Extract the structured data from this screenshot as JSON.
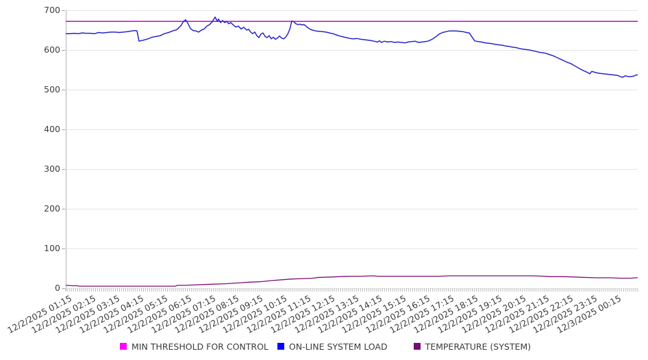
{
  "chart_data": {
    "type": "line",
    "title": "",
    "xlabel": "",
    "ylabel": "",
    "ylim": [
      0,
      700
    ],
    "y_ticks": [
      0,
      100,
      200,
      300,
      400,
      500,
      600,
      700
    ],
    "grid": "horizontal",
    "legend_position": "bottom",
    "x_minor_tick_count": 288,
    "x_tick_labels": [
      "12/2/2025 01:15",
      "12/2/2025 02:15",
      "12/2/2025 03:15",
      "12/2/2025 04:15",
      "12/2/2025 05:15",
      "12/2/2025 06:15",
      "12/2/2025 07:15",
      "12/2/2025 08:15",
      "12/2/2025 09:15",
      "12/2/2025 10:15",
      "12/2/2025 11:15",
      "12/2/2025 12:15",
      "12/2/2025 13:15",
      "12/2/2025 14:15",
      "12/2/2025 15:15",
      "12/2/2025 16:15",
      "12/2/2025 17:15",
      "12/2/2025 18:15",
      "12/2/2025 19:15",
      "12/2/2025 20:15",
      "12/2/2025 21:15",
      "12/2/2025 22:15",
      "12/2/2025 23:15",
      "12/3/2025 00:15"
    ],
    "series": [
      {
        "name": "MIN THRESHOLD FOR CONTROL",
        "swatch_color": "#ff00ff",
        "line_color": "#cc00cc",
        "style": "constant",
        "value": 672
      },
      {
        "name": "ON-LINE SYSTEM LOAD",
        "swatch_color": "#0000ff",
        "line_color": "#2424cc",
        "style": "line",
        "points": [
          [
            0,
            641
          ],
          [
            6,
            641
          ],
          [
            12,
            642
          ],
          [
            18,
            641
          ],
          [
            24,
            643
          ],
          [
            30,
            642
          ],
          [
            36,
            642
          ],
          [
            42,
            641
          ],
          [
            48,
            644
          ],
          [
            54,
            643
          ],
          [
            60,
            644
          ],
          [
            66,
            645
          ],
          [
            72,
            645
          ],
          [
            78,
            644
          ],
          [
            84,
            645
          ],
          [
            90,
            646
          ],
          [
            96,
            648
          ],
          [
            102,
            649
          ],
          [
            104,
            648
          ],
          [
            107,
            622
          ],
          [
            114,
            625
          ],
          [
            120,
            628
          ],
          [
            126,
            632
          ],
          [
            132,
            634
          ],
          [
            138,
            636
          ],
          [
            144,
            641
          ],
          [
            150,
            644
          ],
          [
            156,
            648
          ],
          [
            162,
            651
          ],
          [
            168,
            661
          ],
          [
            172,
            672
          ],
          [
            175,
            676
          ],
          [
            178,
            668
          ],
          [
            182,
            654
          ],
          [
            186,
            649
          ],
          [
            190,
            648
          ],
          [
            194,
            645
          ],
          [
            198,
            650
          ],
          [
            202,
            653
          ],
          [
            206,
            660
          ],
          [
            210,
            664
          ],
          [
            214,
            671
          ],
          [
            218,
            683
          ],
          [
            221,
            673
          ],
          [
            223,
            678
          ],
          [
            226,
            669
          ],
          [
            229,
            674
          ],
          [
            232,
            669
          ],
          [
            235,
            672
          ],
          [
            238,
            666
          ],
          [
            241,
            669
          ],
          [
            244,
            664
          ],
          [
            248,
            658
          ],
          [
            252,
            660
          ],
          [
            256,
            653
          ],
          [
            260,
            657
          ],
          [
            264,
            650
          ],
          [
            267,
            652
          ],
          [
            270,
            645
          ],
          [
            273,
            641
          ],
          [
            276,
            645
          ],
          [
            279,
            636
          ],
          [
            282,
            631
          ],
          [
            285,
            640
          ],
          [
            288,
            643
          ],
          [
            291,
            634
          ],
          [
            294,
            631
          ],
          [
            297,
            636
          ],
          [
            300,
            628
          ],
          [
            303,
            632
          ],
          [
            306,
            627
          ],
          [
            309,
            630
          ],
          [
            312,
            635
          ],
          [
            315,
            630
          ],
          [
            318,
            628
          ],
          [
            321,
            632
          ],
          [
            324,
            640
          ],
          [
            327,
            652
          ],
          [
            330,
            673
          ],
          [
            333,
            671
          ],
          [
            336,
            666
          ],
          [
            339,
            664
          ],
          [
            342,
            665
          ],
          [
            345,
            663
          ],
          [
            348,
            664
          ],
          [
            352,
            658
          ],
          [
            356,
            653
          ],
          [
            360,
            650
          ],
          [
            365,
            648
          ],
          [
            370,
            647
          ],
          [
            375,
            646
          ],
          [
            380,
            645
          ],
          [
            385,
            643
          ],
          [
            390,
            641
          ],
          [
            395,
            638
          ],
          [
            400,
            635
          ],
          [
            405,
            633
          ],
          [
            410,
            631
          ],
          [
            415,
            629
          ],
          [
            420,
            628
          ],
          [
            425,
            629
          ],
          [
            430,
            627
          ],
          [
            435,
            626
          ],
          [
            440,
            625
          ],
          [
            445,
            624
          ],
          [
            450,
            622
          ],
          [
            455,
            620
          ],
          [
            458,
            623
          ],
          [
            461,
            619
          ],
          [
            465,
            622
          ],
          [
            470,
            620
          ],
          [
            475,
            621
          ],
          [
            480,
            619
          ],
          [
            485,
            620
          ],
          [
            490,
            619
          ],
          [
            495,
            618
          ],
          [
            500,
            620
          ],
          [
            505,
            621
          ],
          [
            510,
            622
          ],
          [
            515,
            619
          ],
          [
            520,
            620
          ],
          [
            525,
            621
          ],
          [
            530,
            623
          ],
          [
            535,
            627
          ],
          [
            540,
            633
          ],
          [
            545,
            640
          ],
          [
            550,
            644
          ],
          [
            555,
            646
          ],
          [
            560,
            648
          ],
          [
            565,
            648
          ],
          [
            570,
            648
          ],
          [
            575,
            647
          ],
          [
            580,
            646
          ],
          [
            585,
            644
          ],
          [
            589,
            643
          ],
          [
            593,
            633
          ],
          [
            597,
            623
          ],
          [
            602,
            621
          ],
          [
            607,
            620
          ],
          [
            612,
            618
          ],
          [
            617,
            617
          ],
          [
            622,
            616
          ],
          [
            627,
            614
          ],
          [
            632,
            613
          ],
          [
            637,
            612
          ],
          [
            642,
            610
          ],
          [
            647,
            609
          ],
          [
            652,
            607
          ],
          [
            657,
            606
          ],
          [
            662,
            604
          ],
          [
            667,
            602
          ],
          [
            672,
            601
          ],
          [
            677,
            600
          ],
          [
            682,
            598
          ],
          [
            687,
            596
          ],
          [
            692,
            594
          ],
          [
            697,
            593
          ],
          [
            702,
            591
          ],
          [
            707,
            588
          ],
          [
            712,
            585
          ],
          [
            717,
            581
          ],
          [
            722,
            577
          ],
          [
            727,
            573
          ],
          [
            732,
            569
          ],
          [
            737,
            566
          ],
          [
            742,
            561
          ],
          [
            747,
            556
          ],
          [
            752,
            551
          ],
          [
            757,
            547
          ],
          [
            762,
            543
          ],
          [
            765,
            540
          ],
          [
            768,
            546
          ],
          [
            772,
            544
          ],
          [
            776,
            542
          ],
          [
            780,
            541
          ],
          [
            785,
            540
          ],
          [
            790,
            539
          ],
          [
            795,
            538
          ],
          [
            800,
            537
          ],
          [
            805,
            536
          ],
          [
            810,
            533
          ],
          [
            813,
            531
          ],
          [
            817,
            535
          ],
          [
            821,
            533
          ],
          [
            825,
            533
          ],
          [
            829,
            534
          ],
          [
            833,
            537
          ],
          [
            835,
            537
          ]
        ]
      },
      {
        "name": "TEMPERATURE (SYSTEM)",
        "swatch_color": "#760b76",
        "line_color": "#7a0f78",
        "style": "line",
        "points": [
          [
            0,
            7
          ],
          [
            10,
            6
          ],
          [
            17,
            6
          ],
          [
            19,
            5
          ],
          [
            55,
            5
          ],
          [
            105,
            5
          ],
          [
            160,
            5
          ],
          [
            163,
            7
          ],
          [
            175,
            7
          ],
          [
            185,
            8
          ],
          [
            200,
            9
          ],
          [
            215,
            10
          ],
          [
            233,
            11
          ],
          [
            250,
            13
          ],
          [
            267,
            15
          ],
          [
            283,
            16
          ],
          [
            300,
            19
          ],
          [
            315,
            21
          ],
          [
            330,
            23
          ],
          [
            345,
            24
          ],
          [
            360,
            25
          ],
          [
            370,
            27
          ],
          [
            385,
            28
          ],
          [
            400,
            29
          ],
          [
            415,
            30
          ],
          [
            430,
            30
          ],
          [
            450,
            31
          ],
          [
            455,
            30
          ],
          [
            470,
            30
          ],
          [
            485,
            30
          ],
          [
            505,
            30
          ],
          [
            525,
            30
          ],
          [
            545,
            30
          ],
          [
            560,
            31
          ],
          [
            580,
            31
          ],
          [
            605,
            31
          ],
          [
            630,
            31
          ],
          [
            655,
            31
          ],
          [
            680,
            31
          ],
          [
            700,
            30
          ],
          [
            705,
            29
          ],
          [
            725,
            29
          ],
          [
            745,
            28
          ],
          [
            755,
            27
          ],
          [
            775,
            26
          ],
          [
            795,
            26
          ],
          [
            810,
            25
          ],
          [
            825,
            25
          ],
          [
            831,
            26
          ],
          [
            835,
            26
          ]
        ]
      }
    ]
  },
  "colors": {
    "gridline": "#e6e6e6",
    "axis_line": "#b3b3b3",
    "tick": "#9d9d9d",
    "label_text": "#3c3c3c"
  }
}
